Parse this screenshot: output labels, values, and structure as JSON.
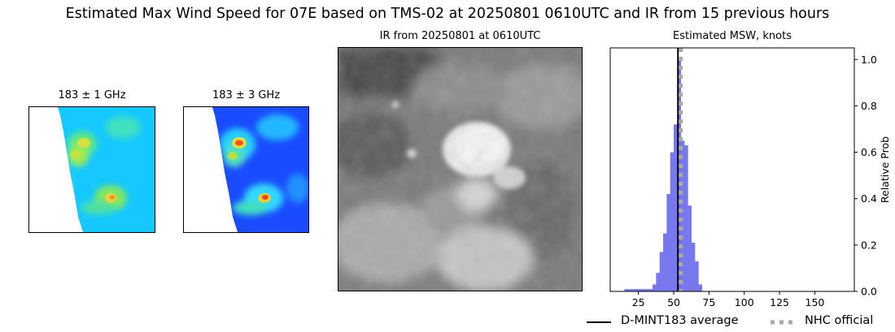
{
  "figure": {
    "title": "Estimated Max Wind Speed for 07E based on TMS-02 at 20250801 0610UTC and IR from 15 previous hours"
  },
  "panels": {
    "mw1_title": "183 ± 1 GHz",
    "mw2_title": "183 ± 3 GHz",
    "ir_title": "IR from 20250801 at 0610UTC",
    "hist_title": "Estimated MSW, knots"
  },
  "colors": {
    "histogram_fill": "#7777ee",
    "average_line": "#000000",
    "nhc_line": "#aaaaaa",
    "mw_background": "#00ccff",
    "ir_gray": "#888888"
  },
  "legend": {
    "average_label": "D-MINT183 average",
    "nhc_label": "NHC official",
    "placement": "lower-right"
  },
  "chart_data": {
    "type": "bar",
    "title": "Estimated MSW, knots",
    "xlabel": "",
    "ylabel": "Relative Prob",
    "xlim": [
      5,
      178
    ],
    "ylim": [
      0,
      1.05
    ],
    "x_ticks": [
      25,
      50,
      75,
      100,
      125,
      150
    ],
    "y_ticks": [
      0.0,
      0.2,
      0.4,
      0.6,
      0.8,
      1.0
    ],
    "y_tick_labels": [
      "0.0",
      "0.2",
      "0.4",
      "0.6",
      "0.8",
      "1.0"
    ],
    "y_axis_side": "right",
    "grid": false,
    "bin_width": 2.5,
    "bins": [
      {
        "x": 15.0,
        "y": 0.01
      },
      {
        "x": 17.5,
        "y": 0.01
      },
      {
        "x": 20.0,
        "y": 0.01
      },
      {
        "x": 22.5,
        "y": 0.01
      },
      {
        "x": 25.0,
        "y": 0.01
      },
      {
        "x": 27.5,
        "y": 0.01
      },
      {
        "x": 30.0,
        "y": 0.01
      },
      {
        "x": 32.5,
        "y": 0.01
      },
      {
        "x": 35.0,
        "y": 0.03
      },
      {
        "x": 37.5,
        "y": 0.08
      },
      {
        "x": 40.0,
        "y": 0.17
      },
      {
        "x": 42.5,
        "y": 0.25
      },
      {
        "x": 45.0,
        "y": 0.42
      },
      {
        "x": 47.5,
        "y": 0.6
      },
      {
        "x": 50.0,
        "y": 0.72
      },
      {
        "x": 52.5,
        "y": 1.0
      },
      {
        "x": 55.0,
        "y": 0.65
      },
      {
        "x": 57.5,
        "y": 0.63
      },
      {
        "x": 60.0,
        "y": 0.37
      },
      {
        "x": 62.5,
        "y": 0.21
      },
      {
        "x": 65.0,
        "y": 0.13
      },
      {
        "x": 67.5,
        "y": 0.03
      }
    ],
    "vertical_lines": [
      {
        "name": "D-MINT183 average",
        "x": 53,
        "style": "solid"
      },
      {
        "name": "NHC official",
        "x": 55,
        "style": "dotted"
      }
    ]
  }
}
